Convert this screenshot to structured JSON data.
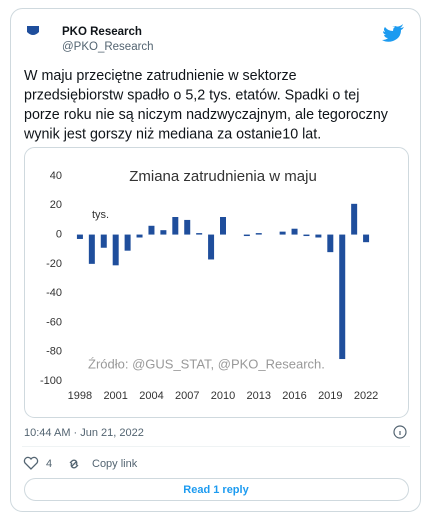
{
  "header": {
    "name": "PKO Research",
    "handle": "@PKO_Research"
  },
  "body": {
    "lines": [
      "W maju przeciętne zatrudnienie w sektorze",
      "przedsiębiorstw spadło o 5,2 tys. etatów. Spadki o tej",
      "porze roku nie są niczym nadzwyczajnym, ale tegoroczny",
      "wynik jest gorszy niż mediana za ostanie10 lat."
    ]
  },
  "chart_data": {
    "type": "bar",
    "title": "Zmiana zatrudnienia w maju",
    "unit_label": "tys.",
    "source": "Źródło: @GUS_STAT, @PKO_Research.",
    "x": [
      1998,
      1999,
      2000,
      2001,
      2002,
      2003,
      2004,
      2005,
      2006,
      2007,
      2008,
      2009,
      2010,
      2011,
      2012,
      2013,
      2014,
      2015,
      2016,
      2017,
      2018,
      2019,
      2020,
      2021,
      2022
    ],
    "values": [
      -3,
      -20,
      -9,
      -21,
      -11,
      -2,
      6,
      3,
      12,
      10,
      1,
      -17,
      12,
      0,
      -1,
      1,
      0,
      2,
      4,
      -1,
      -2,
      -12,
      -85,
      21,
      -5.2
    ],
    "color": "#1f4e9c",
    "xlim": [
      1997,
      2023
    ],
    "xticks": [
      1998,
      2001,
      2004,
      2007,
      2010,
      2013,
      2016,
      2019,
      2022
    ],
    "ylim": [
      -100,
      40
    ],
    "yticks": [
      40,
      20,
      0,
      -20,
      -40,
      -60,
      -80,
      -100
    ],
    "grid": false
  },
  "footer": {
    "timestamp": "10:44 AM · Jun 21, 2022",
    "likes": 4,
    "copy_link": "Copy link",
    "reply_button": "Read 1 reply"
  }
}
